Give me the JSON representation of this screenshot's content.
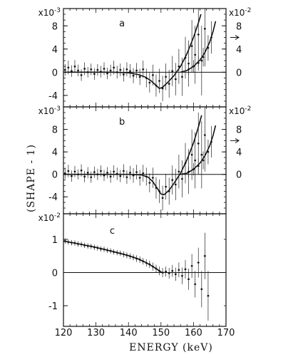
{
  "chart_data": {
    "type": "scatter",
    "xlabel": "ENERGY (keV)",
    "ylabel": "(SHAPE - 1)",
    "xlim": [
      120,
      170
    ],
    "x_ticks": [
      "120",
      "130",
      "140",
      "150",
      "160",
      "170"
    ],
    "panels": [
      {
        "label": "a",
        "scale_left": "x10-3",
        "scale_right": "x10-2",
        "ylim": [
          -5,
          10
        ],
        "y_ticks_left": [
          "-4",
          "0",
          "4",
          "8"
        ],
        "y_ticks_right": [
          "0",
          "4",
          "8"
        ],
        "points": [
          {
            "x": 120.5,
            "y": 0.4,
            "e": 1.0
          },
          {
            "x": 121.5,
            "y": 0.8,
            "e": 1.2
          },
          {
            "x": 122.5,
            "y": 0.2,
            "e": 1.0
          },
          {
            "x": 123.5,
            "y": 1.0,
            "e": 1.1
          },
          {
            "x": 124.5,
            "y": 0.3,
            "e": 1.0
          },
          {
            "x": 125.5,
            "y": -0.5,
            "e": 1.0
          },
          {
            "x": 126.5,
            "y": 0.6,
            "e": 1.1
          },
          {
            "x": 127.5,
            "y": 0.0,
            "e": 0.9
          },
          {
            "x": 128.5,
            "y": 0.5,
            "e": 1.0
          },
          {
            "x": 129.5,
            "y": -0.3,
            "e": 1.0
          },
          {
            "x": 130.5,
            "y": 0.4,
            "e": 1.0
          },
          {
            "x": 131.5,
            "y": 0.1,
            "e": 1.0
          },
          {
            "x": 132.5,
            "y": 0.6,
            "e": 1.1
          },
          {
            "x": 133.5,
            "y": -0.2,
            "e": 1.0
          },
          {
            "x": 134.5,
            "y": 0.3,
            "e": 1.0
          },
          {
            "x": 135.5,
            "y": 0.8,
            "e": 1.2
          },
          {
            "x": 136.5,
            "y": 0.0,
            "e": 1.1
          },
          {
            "x": 137.5,
            "y": 0.4,
            "e": 1.1
          },
          {
            "x": 138.5,
            "y": -0.4,
            "e": 1.2
          },
          {
            "x": 139.5,
            "y": 0.5,
            "e": 1.2
          },
          {
            "x": 140.5,
            "y": 0.2,
            "e": 1.2
          },
          {
            "x": 141.5,
            "y": -0.6,
            "e": 1.3
          },
          {
            "x": 142.5,
            "y": 0.3,
            "e": 1.3
          },
          {
            "x": 143.5,
            "y": -0.8,
            "e": 1.4
          },
          {
            "x": 144.5,
            "y": 0.5,
            "e": 1.5
          },
          {
            "x": 145.5,
            "y": -1.0,
            "e": 1.6
          },
          {
            "x": 146.5,
            "y": -1.8,
            "e": 1.7
          },
          {
            "x": 147.5,
            "y": -0.5,
            "e": 1.8
          },
          {
            "x": 148.5,
            "y": -2.3,
            "e": 1.9
          },
          {
            "x": 149.5,
            "y": -1.5,
            "e": 2.1
          },
          {
            "x": 150.5,
            "y": -2.8,
            "e": 2.2
          },
          {
            "x": 151.5,
            "y": -0.8,
            "e": 2.3
          },
          {
            "x": 152.5,
            "y": -2.0,
            "e": 2.4
          },
          {
            "x": 153.5,
            "y": 0.2,
            "e": 2.6
          },
          {
            "x": 154.5,
            "y": -1.2,
            "e": 2.8
          },
          {
            "x": 155.5,
            "y": 1.0,
            "e": 3.0
          },
          {
            "x": 156.5,
            "y": -0.8,
            "e": 3.3
          },
          {
            "x": 157.5,
            "y": 2.5,
            "e": 3.6
          },
          {
            "x": 158.5,
            "y": 1.5,
            "e": 4.0
          },
          {
            "x": 159.5,
            "y": 4.5,
            "e": 4.5
          },
          {
            "x": 160.5,
            "y": 3.0,
            "e": 5.0
          },
          {
            "x": 161.5,
            "y": 6.5,
            "e": 5.5
          },
          {
            "x": 162.5,
            "y": 2.0,
            "e": 6.0
          },
          {
            "x": 163.5,
            "y": 7.5,
            "e": 6.5
          }
        ],
        "points_right": [
          {
            "x": 158.5,
            "y": 0.5,
            "e": 1.0
          },
          {
            "x": 160.0,
            "y": 1.0,
            "e": 1.1
          },
          {
            "x": 161.5,
            "y": 1.6,
            "e": 1.3
          },
          {
            "x": 163.0,
            "y": 2.6,
            "e": 1.6
          },
          {
            "x": 164.5,
            "y": 4.2,
            "e": 2.2
          },
          {
            "x": 165.5,
            "y": 6.0,
            "e": 2.8
          }
        ],
        "fit_left": [
          [
            120,
            0
          ],
          [
            125,
            0
          ],
          [
            130,
            0
          ],
          [
            135,
            0
          ],
          [
            140,
            -0.1
          ],
          [
            143,
            -0.4
          ],
          [
            145,
            -0.8
          ],
          [
            147,
            -1.5
          ],
          [
            148.5,
            -2.3
          ],
          [
            149.5,
            -2.8
          ],
          [
            150.5,
            -2.6
          ],
          [
            152,
            -1.8
          ],
          [
            154,
            -0.6
          ],
          [
            156,
            1.0
          ],
          [
            158,
            3.2
          ],
          [
            160,
            6.0
          ],
          [
            161.5,
            8.5
          ],
          [
            162.3,
            10
          ]
        ],
        "fit_right": [
          [
            156,
            0
          ],
          [
            158,
            0.3
          ],
          [
            160,
            1.0
          ],
          [
            162,
            2.1
          ],
          [
            163.5,
            3.4
          ],
          [
            165,
            5.2
          ],
          [
            166,
            7.0
          ],
          [
            166.8,
            8.8
          ]
        ]
      },
      {
        "label": "b",
        "scale_left": "x10-3",
        "scale_right": "x10-2",
        "ylim": [
          -6,
          11
        ],
        "y_ticks_left": [
          "-4",
          "0",
          "4",
          "8"
        ],
        "y_ticks_right": [
          "0",
          "4",
          "8"
        ],
        "points": [
          {
            "x": 120.5,
            "y": 0.2,
            "e": 1.0
          },
          {
            "x": 121.5,
            "y": 0.6,
            "e": 1.1
          },
          {
            "x": 122.5,
            "y": -0.3,
            "e": 1.0
          },
          {
            "x": 123.5,
            "y": 0.5,
            "e": 1.0
          },
          {
            "x": 124.5,
            "y": 0.0,
            "e": 0.9
          },
          {
            "x": 125.5,
            "y": 0.7,
            "e": 1.1
          },
          {
            "x": 126.5,
            "y": -0.4,
            "e": 1.0
          },
          {
            "x": 127.5,
            "y": 0.3,
            "e": 1.0
          },
          {
            "x": 128.5,
            "y": -0.5,
            "e": 1.0
          },
          {
            "x": 129.5,
            "y": 0.4,
            "e": 1.0
          },
          {
            "x": 130.5,
            "y": 0.0,
            "e": 1.0
          },
          {
            "x": 131.5,
            "y": 0.6,
            "e": 1.0
          },
          {
            "x": 132.5,
            "y": -0.2,
            "e": 1.0
          },
          {
            "x": 133.5,
            "y": 0.3,
            "e": 1.0
          },
          {
            "x": 134.5,
            "y": -0.4,
            "e": 1.1
          },
          {
            "x": 135.5,
            "y": 0.5,
            "e": 1.1
          },
          {
            "x": 136.5,
            "y": 0.1,
            "e": 1.1
          },
          {
            "x": 137.5,
            "y": -0.3,
            "e": 1.1
          },
          {
            "x": 138.5,
            "y": 0.6,
            "e": 1.2
          },
          {
            "x": 139.5,
            "y": -0.5,
            "e": 1.2
          },
          {
            "x": 140.5,
            "y": 0.3,
            "e": 1.2
          },
          {
            "x": 141.5,
            "y": -0.2,
            "e": 1.3
          },
          {
            "x": 142.5,
            "y": 0.4,
            "e": 1.3
          },
          {
            "x": 143.5,
            "y": -0.6,
            "e": 1.4
          },
          {
            "x": 144.5,
            "y": 0.2,
            "e": 1.5
          },
          {
            "x": 145.5,
            "y": -0.4,
            "e": 1.6
          },
          {
            "x": 146.5,
            "y": -1.5,
            "e": 1.7
          },
          {
            "x": 147.5,
            "y": -0.6,
            "e": 1.8
          },
          {
            "x": 148.5,
            "y": -2.4,
            "e": 1.9
          },
          {
            "x": 149.5,
            "y": -3.0,
            "e": 2.1
          },
          {
            "x": 150.5,
            "y": -4.2,
            "e": 2.2
          },
          {
            "x": 151.5,
            "y": -2.2,
            "e": 2.3
          },
          {
            "x": 152.5,
            "y": -3.0,
            "e": 2.4
          },
          {
            "x": 153.5,
            "y": -1.0,
            "e": 2.6
          },
          {
            "x": 154.5,
            "y": -1.8,
            "e": 2.8
          },
          {
            "x": 155.5,
            "y": 0.5,
            "e": 3.0
          },
          {
            "x": 156.5,
            "y": -0.8,
            "e": 3.3
          },
          {
            "x": 157.5,
            "y": 2.0,
            "e": 3.6
          },
          {
            "x": 158.5,
            "y": 0.5,
            "e": 4.0
          },
          {
            "x": 159.5,
            "y": 3.5,
            "e": 4.5
          },
          {
            "x": 160.5,
            "y": 2.5,
            "e": 5.0
          },
          {
            "x": 161.5,
            "y": 5.5,
            "e": 5.5
          },
          {
            "x": 162.5,
            "y": 3.5,
            "e": 6.0
          },
          {
            "x": 163.5,
            "y": 7.0,
            "e": 6.5
          }
        ],
        "points_right": [
          {
            "x": 158.5,
            "y": 0.4,
            "e": 1.0
          },
          {
            "x": 160.0,
            "y": 0.9,
            "e": 1.1
          },
          {
            "x": 161.5,
            "y": 1.5,
            "e": 1.3
          },
          {
            "x": 163.0,
            "y": 2.5,
            "e": 1.6
          },
          {
            "x": 164.5,
            "y": 4.0,
            "e": 2.2
          },
          {
            "x": 165.5,
            "y": 5.8,
            "e": 2.8
          }
        ],
        "fit_left": [
          [
            120,
            0
          ],
          [
            130,
            0
          ],
          [
            140,
            0
          ],
          [
            144,
            -0.1
          ],
          [
            146,
            -0.5
          ],
          [
            147.5,
            -1.3
          ],
          [
            149,
            -2.6
          ],
          [
            150,
            -3.5
          ],
          [
            151,
            -3.6
          ],
          [
            152.5,
            -2.8
          ],
          [
            154,
            -1.6
          ],
          [
            156,
            0.2
          ],
          [
            158,
            2.6
          ],
          [
            160,
            5.6
          ],
          [
            161.5,
            8.4
          ],
          [
            162.5,
            10.5
          ]
        ],
        "fit_right": [
          [
            156,
            0
          ],
          [
            158,
            0.2
          ],
          [
            160,
            0.9
          ],
          [
            162,
            2.0
          ],
          [
            163.5,
            3.3
          ],
          [
            165,
            5.1
          ],
          [
            166,
            6.9
          ],
          [
            166.8,
            8.7
          ]
        ]
      },
      {
        "label": "c",
        "scale_left": "x10-2",
        "ylim": [
          -1.45,
          1.6
        ],
        "y_ticks_left": [
          "-1",
          "0",
          "1"
        ],
        "points": [
          {
            "x": 120.5,
            "y": 0.95,
            "e": 0.08
          },
          {
            "x": 121.5,
            "y": 0.92,
            "e": 0.08
          },
          {
            "x": 122.5,
            "y": 0.9,
            "e": 0.08
          },
          {
            "x": 123.5,
            "y": 0.89,
            "e": 0.08
          },
          {
            "x": 124.5,
            "y": 0.86,
            "e": 0.08
          },
          {
            "x": 125.5,
            "y": 0.85,
            "e": 0.08
          },
          {
            "x": 126.5,
            "y": 0.82,
            "e": 0.08
          },
          {
            "x": 127.5,
            "y": 0.8,
            "e": 0.08
          },
          {
            "x": 128.5,
            "y": 0.79,
            "e": 0.08
          },
          {
            "x": 129.5,
            "y": 0.76,
            "e": 0.08
          },
          {
            "x": 130.5,
            "y": 0.74,
            "e": 0.08
          },
          {
            "x": 131.5,
            "y": 0.71,
            "e": 0.08
          },
          {
            "x": 132.5,
            "y": 0.7,
            "e": 0.08
          },
          {
            "x": 133.5,
            "y": 0.67,
            "e": 0.08
          },
          {
            "x": 134.5,
            "y": 0.65,
            "e": 0.08
          },
          {
            "x": 135.5,
            "y": 0.62,
            "e": 0.08
          },
          {
            "x": 136.5,
            "y": 0.6,
            "e": 0.08
          },
          {
            "x": 137.5,
            "y": 0.58,
            "e": 0.08
          },
          {
            "x": 138.5,
            "y": 0.55,
            "e": 0.09
          },
          {
            "x": 139.5,
            "y": 0.52,
            "e": 0.09
          },
          {
            "x": 140.5,
            "y": 0.49,
            "e": 0.09
          },
          {
            "x": 141.5,
            "y": 0.46,
            "e": 0.09
          },
          {
            "x": 142.5,
            "y": 0.42,
            "e": 0.1
          },
          {
            "x": 143.5,
            "y": 0.39,
            "e": 0.1
          },
          {
            "x": 144.5,
            "y": 0.34,
            "e": 0.1
          },
          {
            "x": 145.5,
            "y": 0.29,
            "e": 0.11
          },
          {
            "x": 146.5,
            "y": 0.25,
            "e": 0.11
          },
          {
            "x": 147.5,
            "y": 0.18,
            "e": 0.12
          },
          {
            "x": 148.5,
            "y": 0.12,
            "e": 0.12
          },
          {
            "x": 149.5,
            "y": 0.05,
            "e": 0.13
          },
          {
            "x": 150.5,
            "y": 0.0,
            "e": 0.14
          },
          {
            "x": 151.5,
            "y": 0.03,
            "e": 0.15
          },
          {
            "x": 152.5,
            "y": -0.02,
            "e": 0.16
          },
          {
            "x": 153.5,
            "y": 0.05,
            "e": 0.18
          },
          {
            "x": 154.5,
            "y": -0.05,
            "e": 0.2
          },
          {
            "x": 155.5,
            "y": 0.08,
            "e": 0.22
          },
          {
            "x": 156.5,
            "y": -0.1,
            "e": 0.25
          },
          {
            "x": 157.5,
            "y": 0.1,
            "e": 0.28
          },
          {
            "x": 158.5,
            "y": -0.2,
            "e": 0.32
          },
          {
            "x": 159.5,
            "y": 0.2,
            "e": 0.36
          },
          {
            "x": 160.5,
            "y": -0.35,
            "e": 0.4
          },
          {
            "x": 161.5,
            "y": 0.3,
            "e": 0.45
          },
          {
            "x": 162.5,
            "y": -0.5,
            "e": 0.55
          },
          {
            "x": 163.5,
            "y": 0.5,
            "e": 0.7
          },
          {
            "x": 164.5,
            "y": -0.7,
            "e": 0.75
          }
        ],
        "fit_left": [
          [
            120,
            0.95
          ],
          [
            125,
            0.86
          ],
          [
            130,
            0.76
          ],
          [
            135,
            0.64
          ],
          [
            140,
            0.51
          ],
          [
            143,
            0.41
          ],
          [
            145,
            0.32
          ],
          [
            147,
            0.21
          ],
          [
            148.5,
            0.12
          ],
          [
            149.5,
            0.05
          ],
          [
            150.3,
            0.0
          ],
          [
            151,
            0.0
          ]
        ]
      }
    ]
  }
}
